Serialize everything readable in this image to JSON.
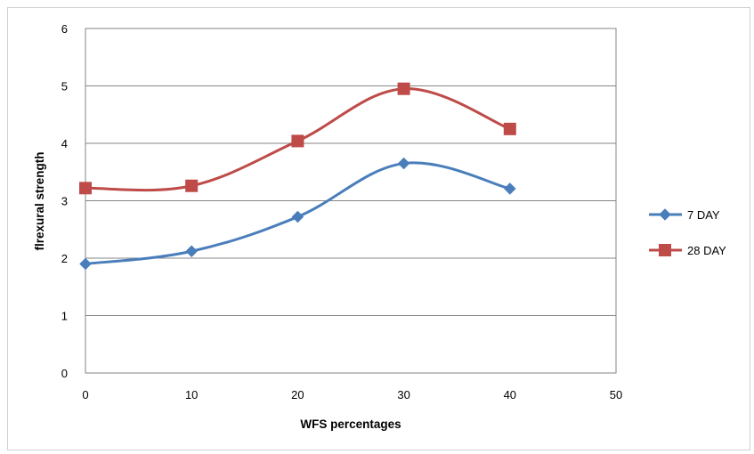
{
  "chart_data": {
    "type": "line",
    "title": "",
    "xlabel": "WFS percentages",
    "ylabel": "flrexural strength",
    "x": [
      0,
      10,
      20,
      30,
      40
    ],
    "xlim": [
      0,
      50
    ],
    "ylim": [
      0,
      6
    ],
    "x_ticks": [
      "0",
      "10",
      "20",
      "30",
      "40",
      "50"
    ],
    "y_ticks": [
      "0",
      "1",
      "2",
      "3",
      "4",
      "5",
      "6"
    ],
    "grid": "horizontal",
    "smooth": true,
    "legend_position": "right",
    "series": [
      {
        "name": "7 DAY",
        "values": [
          1.9,
          2.12,
          2.72,
          3.65,
          3.21
        ],
        "color": "#4a7ebb",
        "marker": "diamond"
      },
      {
        "name": "28 DAY",
        "values": [
          3.22,
          3.26,
          4.04,
          4.95,
          4.25
        ],
        "color": "#be4b48",
        "marker": "square"
      }
    ]
  }
}
